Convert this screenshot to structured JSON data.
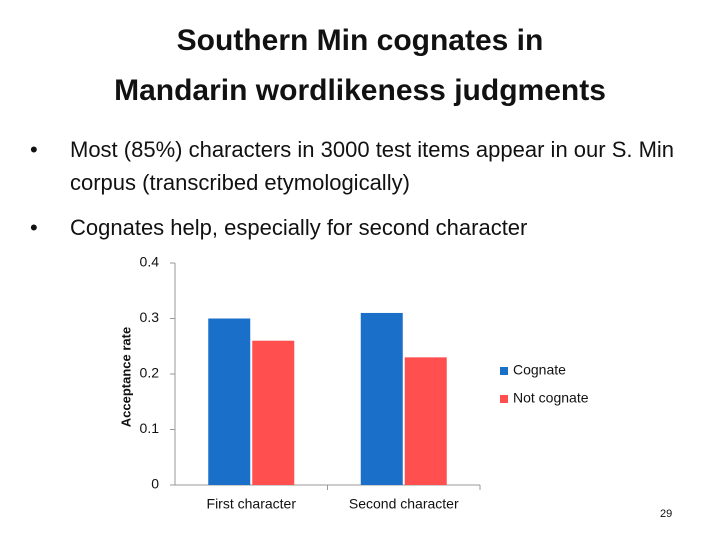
{
  "title": [
    "Southern Min cognates in",
    "Mandarin wordlikeness judgments"
  ],
  "bullets": [
    "Most (85%) characters in 3000 test items appear in our S. Min corpus (transcribed etymologically)",
    "Cognates help, especially for second character"
  ],
  "page_number": "29",
  "chart_data": {
    "type": "bar",
    "y_label": "Acceptance rate",
    "categories": [
      "First character",
      "Second character"
    ],
    "series": [
      {
        "name": "Cognate",
        "color": "#1a6fc9",
        "values": [
          0.3,
          0.31
        ]
      },
      {
        "name": "Not cognate",
        "color": "#ff4f4f",
        "values": [
          0.26,
          0.23
        ]
      }
    ],
    "ylim": [
      0,
      0.4
    ],
    "yticks": [
      0,
      0.1,
      0.2,
      0.3,
      0.4
    ],
    "grid": false,
    "legend": "right"
  }
}
